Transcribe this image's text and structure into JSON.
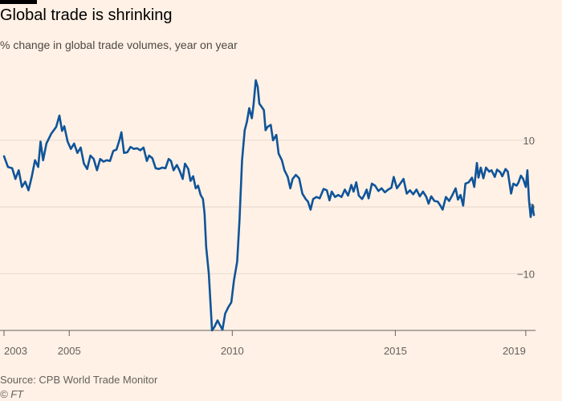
{
  "header": {
    "title": "Global trade is shrinking",
    "subtitle": "% change in global trade volumes, year on year"
  },
  "footer": {
    "source": "Source: CPB World Trade Monitor",
    "credit": "© FT"
  },
  "colors": {
    "background": "#fff1e5",
    "line": "#0f5499",
    "grid": "#e6d9ce",
    "axis": "#66605c",
    "brand_bar": "#000000"
  },
  "chart_data": {
    "type": "line",
    "title": "Global trade is shrinking",
    "subtitle": "% change in global trade volumes, year on year",
    "xlabel": "",
    "ylabel": "",
    "x_range": [
      2003.0,
      2019.2
    ],
    "ylim": [
      -18.5,
      19
    ],
    "y_ticks": [
      10,
      0,
      -10
    ],
    "x_ticks": [
      {
        "value": 2003,
        "label": "2003"
      },
      {
        "value": 2005,
        "label": "2005"
      },
      {
        "value": 2010,
        "label": "2010"
      },
      {
        "value": 2015,
        "label": "2015"
      },
      {
        "value": 2019,
        "label": "2019"
      }
    ],
    "grid": "horizontal",
    "y_axis_position": "right",
    "series": [
      {
        "values": [
          [
            2003.0,
            7.6
          ],
          [
            2003.12,
            6.0
          ],
          [
            2003.25,
            5.8
          ],
          [
            2003.35,
            4.2
          ],
          [
            2003.45,
            5.5
          ],
          [
            2003.55,
            3.0
          ],
          [
            2003.65,
            3.8
          ],
          [
            2003.75,
            2.5
          ],
          [
            2003.85,
            4.5
          ],
          [
            2003.95,
            7.0
          ],
          [
            2004.05,
            6.0
          ],
          [
            2004.12,
            9.8
          ],
          [
            2004.2,
            7.0
          ],
          [
            2004.3,
            9.5
          ],
          [
            2004.45,
            11.0
          ],
          [
            2004.6,
            12.0
          ],
          [
            2004.7,
            13.7
          ],
          [
            2004.78,
            11.4
          ],
          [
            2004.85,
            12.1
          ],
          [
            2004.95,
            9.8
          ],
          [
            2005.05,
            8.7
          ],
          [
            2005.15,
            9.5
          ],
          [
            2005.25,
            8.1
          ],
          [
            2005.35,
            8.9
          ],
          [
            2005.45,
            6.5
          ],
          [
            2005.55,
            5.7
          ],
          [
            2005.65,
            7.7
          ],
          [
            2005.75,
            7.2
          ],
          [
            2005.85,
            5.5
          ],
          [
            2005.95,
            7.2
          ],
          [
            2006.05,
            6.8
          ],
          [
            2006.15,
            7.0
          ],
          [
            2006.25,
            6.9
          ],
          [
            2006.35,
            8.4
          ],
          [
            2006.45,
            8.6
          ],
          [
            2006.55,
            10.2
          ],
          [
            2006.6,
            11.2
          ],
          [
            2006.68,
            8.1
          ],
          [
            2006.78,
            8.2
          ],
          [
            2006.88,
            9.0
          ],
          [
            2006.98,
            8.7
          ],
          [
            2007.08,
            8.8
          ],
          [
            2007.18,
            8.5
          ],
          [
            2007.28,
            8.9
          ],
          [
            2007.38,
            6.9
          ],
          [
            2007.45,
            7.7
          ],
          [
            2007.55,
            7.3
          ],
          [
            2007.65,
            5.8
          ],
          [
            2007.75,
            5.7
          ],
          [
            2007.85,
            5.9
          ],
          [
            2007.95,
            5.8
          ],
          [
            2008.05,
            7.2
          ],
          [
            2008.12,
            6.9
          ],
          [
            2008.2,
            5.5
          ],
          [
            2008.3,
            6.3
          ],
          [
            2008.38,
            5.5
          ],
          [
            2008.48,
            4.2
          ],
          [
            2008.55,
            6.5
          ],
          [
            2008.65,
            5.7
          ],
          [
            2008.72,
            3.9
          ],
          [
            2008.8,
            4.6
          ],
          [
            2008.88,
            2.8
          ],
          [
            2008.95,
            3.2
          ],
          [
            2009.03,
            1.8
          ],
          [
            2009.1,
            1.2
          ],
          [
            2009.15,
            -1.0
          ],
          [
            2009.2,
            -6.0
          ],
          [
            2009.28,
            -10.0
          ],
          [
            2009.38,
            -18.5
          ],
          [
            2009.45,
            -18.0
          ],
          [
            2009.55,
            -17.0
          ],
          [
            2009.6,
            -17.5
          ],
          [
            2009.7,
            -18.4
          ],
          [
            2009.78,
            -16.0
          ],
          [
            2009.88,
            -15.0
          ],
          [
            2009.97,
            -14.3
          ],
          [
            2010.05,
            -11.0
          ],
          [
            2010.15,
            -8.2
          ],
          [
            2010.22,
            -2.0
          ],
          [
            2010.3,
            7.0
          ],
          [
            2010.38,
            11.5
          ],
          [
            2010.45,
            12.8
          ],
          [
            2010.52,
            14.8
          ],
          [
            2010.6,
            13.3
          ],
          [
            2010.65,
            15.2
          ],
          [
            2010.72,
            19.0
          ],
          [
            2010.78,
            18.0
          ],
          [
            2010.83,
            15.5
          ],
          [
            2010.9,
            15.0
          ],
          [
            2010.97,
            14.5
          ],
          [
            2011.02,
            11.5
          ],
          [
            2011.08,
            12.0
          ],
          [
            2011.18,
            12.3
          ],
          [
            2011.25,
            10.0
          ],
          [
            2011.35,
            10.8
          ],
          [
            2011.42,
            8.0
          ],
          [
            2011.52,
            7.0
          ],
          [
            2011.6,
            5.5
          ],
          [
            2011.7,
            4.5
          ],
          [
            2011.78,
            2.8
          ],
          [
            2011.85,
            4.2
          ],
          [
            2011.95,
            4.8
          ],
          [
            2012.05,
            4.3
          ],
          [
            2012.15,
            2.0
          ],
          [
            2012.25,
            1.2
          ],
          [
            2012.32,
            0.8
          ],
          [
            2012.4,
            -0.4
          ],
          [
            2012.48,
            1.2
          ],
          [
            2012.58,
            1.5
          ],
          [
            2012.68,
            1.3
          ],
          [
            2012.8,
            2.7
          ],
          [
            2012.9,
            2.5
          ],
          [
            2012.98,
            1.0
          ],
          [
            2013.05,
            2.3
          ],
          [
            2013.15,
            1.5
          ],
          [
            2013.25,
            1.8
          ],
          [
            2013.35,
            1.5
          ],
          [
            2013.45,
            2.6
          ],
          [
            2013.55,
            1.7
          ],
          [
            2013.65,
            3.3
          ],
          [
            2013.72,
            2.3
          ],
          [
            2013.8,
            3.7
          ],
          [
            2013.88,
            1.7
          ],
          [
            2013.98,
            1.2
          ],
          [
            2014.05,
            1.8
          ],
          [
            2014.12,
            2.6
          ],
          [
            2014.18,
            1.3
          ],
          [
            2014.28,
            3.5
          ],
          [
            2014.38,
            3.2
          ],
          [
            2014.48,
            2.4
          ],
          [
            2014.58,
            2.8
          ],
          [
            2014.68,
            2.2
          ],
          [
            2014.78,
            2.6
          ],
          [
            2014.88,
            2.9
          ],
          [
            2014.95,
            4.5
          ],
          [
            2015.05,
            2.8
          ],
          [
            2015.15,
            3.5
          ],
          [
            2015.25,
            4.2
          ],
          [
            2015.35,
            2.0
          ],
          [
            2015.45,
            2.5
          ],
          [
            2015.55,
            1.9
          ],
          [
            2015.65,
            2.6
          ],
          [
            2015.75,
            1.6
          ],
          [
            2015.85,
            2.3
          ],
          [
            2015.95,
            1.5
          ],
          [
            2016.02,
            0.5
          ],
          [
            2016.1,
            1.6
          ],
          [
            2016.2,
            0.9
          ],
          [
            2016.3,
            0.8
          ],
          [
            2016.38,
            0.2
          ],
          [
            2016.45,
            -0.4
          ],
          [
            2016.55,
            1.5
          ],
          [
            2016.65,
            0.9
          ],
          [
            2016.75,
            1.8
          ],
          [
            2016.85,
            2.8
          ],
          [
            2016.92,
            1.1
          ],
          [
            2017.0,
            1.8
          ],
          [
            2017.08,
            0.2
          ],
          [
            2017.15,
            3.5
          ],
          [
            2017.25,
            3.7
          ],
          [
            2017.35,
            4.4
          ],
          [
            2017.42,
            3.0
          ],
          [
            2017.5,
            6.6
          ],
          [
            2017.55,
            4.4
          ],
          [
            2017.62,
            5.9
          ],
          [
            2017.7,
            4.3
          ],
          [
            2017.78,
            5.9
          ],
          [
            2017.88,
            5.3
          ],
          [
            2017.95,
            5.5
          ],
          [
            2018.05,
            4.5
          ],
          [
            2018.12,
            5.6
          ],
          [
            2018.22,
            5.2
          ],
          [
            2018.28,
            4.6
          ],
          [
            2018.38,
            5.7
          ],
          [
            2018.45,
            5.3
          ],
          [
            2018.55,
            2.0
          ],
          [
            2018.62,
            3.5
          ],
          [
            2018.72,
            3.2
          ],
          [
            2018.78,
            3.7
          ],
          [
            2018.85,
            4.7
          ],
          [
            2018.92,
            4.2
          ],
          [
            2019.0,
            3.0
          ],
          [
            2019.05,
            5.5
          ],
          [
            2019.1,
            1.0
          ],
          [
            2019.15,
            -1.5
          ],
          [
            2019.2,
            0.2
          ],
          [
            2019.25,
            -1.2
          ]
        ]
      }
    ]
  }
}
